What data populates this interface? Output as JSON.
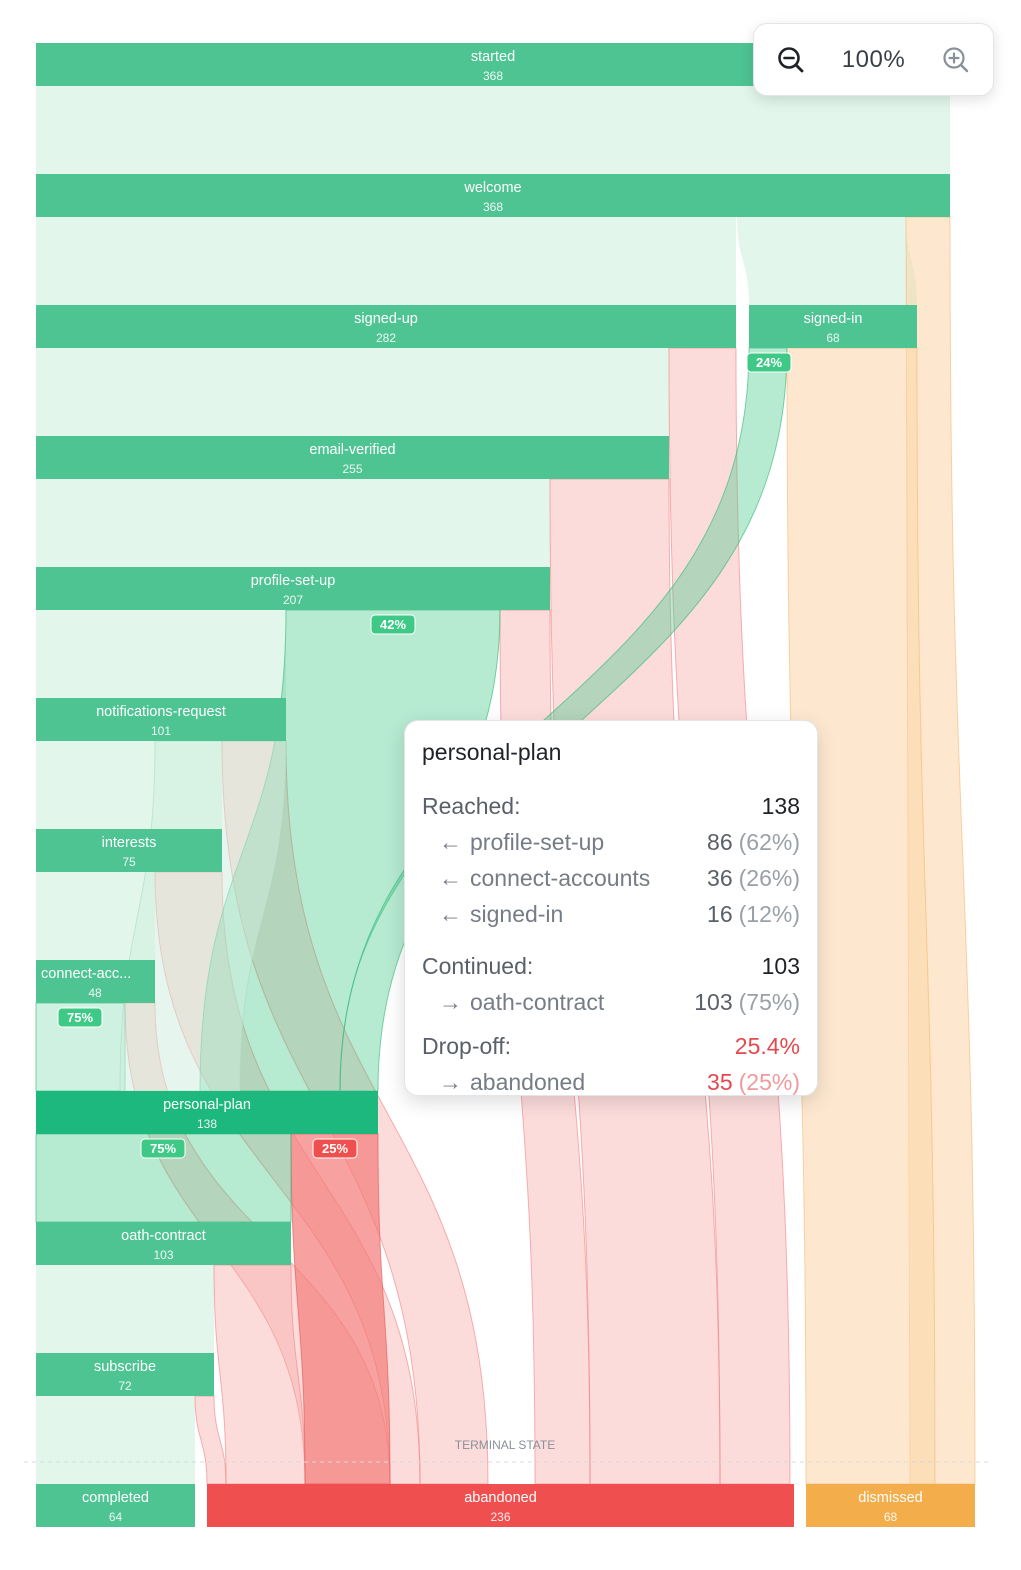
{
  "chart_data": {
    "type": "sankey",
    "title": "",
    "terminal_label": "TERMINAL STATE",
    "colors": {
      "node": "#4ec493",
      "node_selected": "#1db87e",
      "abandoned": "#ef4f4f",
      "dismissed": "#f4ad4b",
      "continue_band": "#e2f6eb",
      "continue_link": "#3ec987",
      "drop_link": "#f7a3a1",
      "dismiss_link": "#fbd6a8"
    },
    "nodes": [
      {
        "id": "started",
        "label": "started",
        "count": 368
      },
      {
        "id": "welcome",
        "label": "welcome",
        "count": 368
      },
      {
        "id": "signed-up",
        "label": "signed-up",
        "count": 282
      },
      {
        "id": "signed-in",
        "label": "signed-in",
        "count": 68
      },
      {
        "id": "email-verified",
        "label": "email-verified",
        "count": 255
      },
      {
        "id": "profile-set-up",
        "label": "profile-set-up",
        "count": 207
      },
      {
        "id": "notifications-request",
        "label": "notifications-request",
        "count": 101
      },
      {
        "id": "interests",
        "label": "interests",
        "count": 75
      },
      {
        "id": "connect-accounts",
        "label": "connect-acc...",
        "count": 48
      },
      {
        "id": "personal-plan",
        "label": "personal-plan",
        "count": 138
      },
      {
        "id": "oath-contract",
        "label": "oath-contract",
        "count": 103
      },
      {
        "id": "subscribe",
        "label": "subscribe",
        "count": 72
      },
      {
        "id": "completed",
        "label": "completed",
        "count": 64
      },
      {
        "id": "abandoned",
        "label": "abandoned",
        "count": 236
      },
      {
        "id": "dismissed",
        "label": "dismissed",
        "count": 68
      }
    ],
    "badges": [
      {
        "node": "signed-in",
        "text": "24%",
        "kind": "continue"
      },
      {
        "node": "profile-set-up",
        "text": "42%",
        "kind": "continue"
      },
      {
        "node": "connect-accounts",
        "text": "75%",
        "kind": "continue"
      },
      {
        "node": "personal-plan",
        "text": "75%",
        "kind": "continue"
      },
      {
        "node": "personal-plan",
        "text": "25%",
        "kind": "drop"
      }
    ]
  },
  "zoom": {
    "level": "100%",
    "zoom_out_icon": "zoom-out-icon",
    "zoom_in_icon": "zoom-in-icon"
  },
  "tooltip": {
    "title": "personal-plan",
    "reached_label": "Reached:",
    "reached_value": "138",
    "sources": [
      {
        "arrow": "←",
        "name": "profile-set-up",
        "value": "86",
        "pct": "(62%)"
      },
      {
        "arrow": "←",
        "name": "connect-accounts",
        "value": "36",
        "pct": "(26%)"
      },
      {
        "arrow": "←",
        "name": "signed-in",
        "value": "16",
        "pct": "(12%)"
      }
    ],
    "continued_label": "Continued:",
    "continued_value": "103",
    "targets": [
      {
        "arrow": "→",
        "name": "oath-contract",
        "value": "103",
        "pct": "(75%)"
      }
    ],
    "dropoff_label": "Drop-off:",
    "dropoff_value": "25.4%",
    "drops": [
      {
        "arrow": "→",
        "name": "abandoned",
        "value": "35",
        "pct": "(25%)"
      }
    ]
  }
}
